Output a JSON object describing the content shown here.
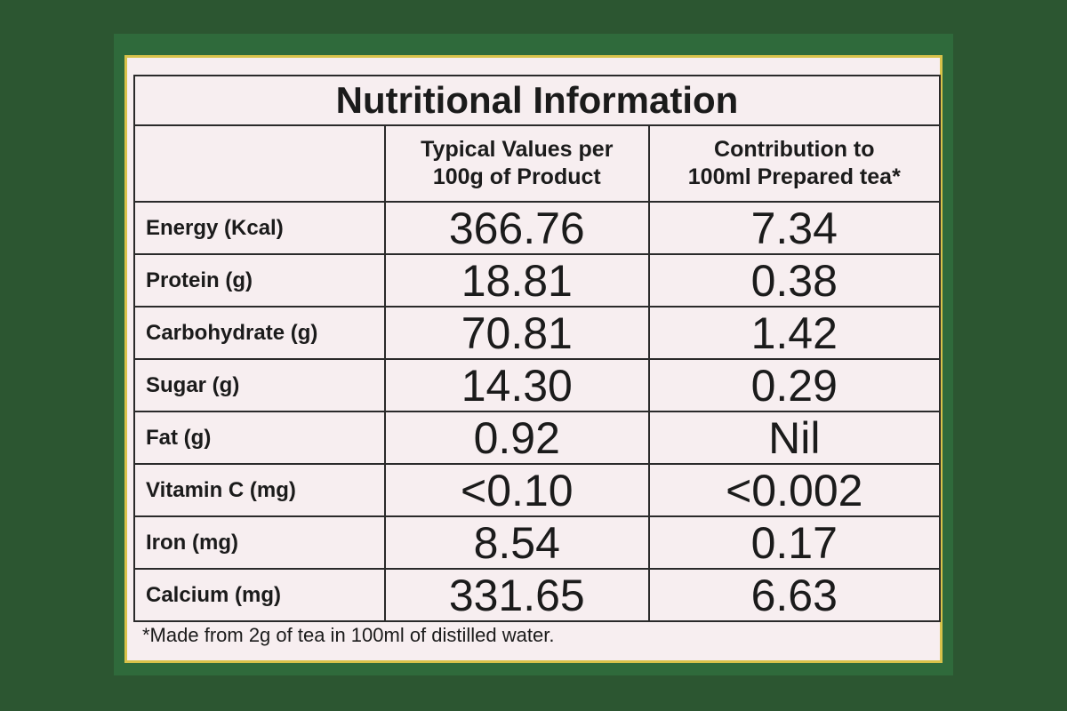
{
  "table": {
    "title": "Nutritional Information",
    "columns": [
      [
        "Typical Values per",
        "100g of Product"
      ],
      [
        "Contribution to",
        "100ml Prepared tea*"
      ]
    ],
    "rows": [
      [
        "Energy (Kcal)",
        "366.76",
        "7.34"
      ],
      [
        "Protein (g)",
        "18.81",
        "0.38"
      ],
      [
        "Carbohydrate (g)",
        "70.81",
        "1.42"
      ],
      [
        "Sugar (g)",
        "14.30",
        "0.29"
      ],
      [
        "Fat (g)",
        "0.92",
        "Nil"
      ],
      [
        "Vitamin C (mg)",
        "<0.10",
        "<0.002"
      ],
      [
        "Iron (mg)",
        "8.54",
        "0.17"
      ],
      [
        "Calcium (mg)",
        "331.65",
        "6.63"
      ]
    ],
    "footnote": "*Made from 2g of tea in 100ml of distilled water."
  }
}
